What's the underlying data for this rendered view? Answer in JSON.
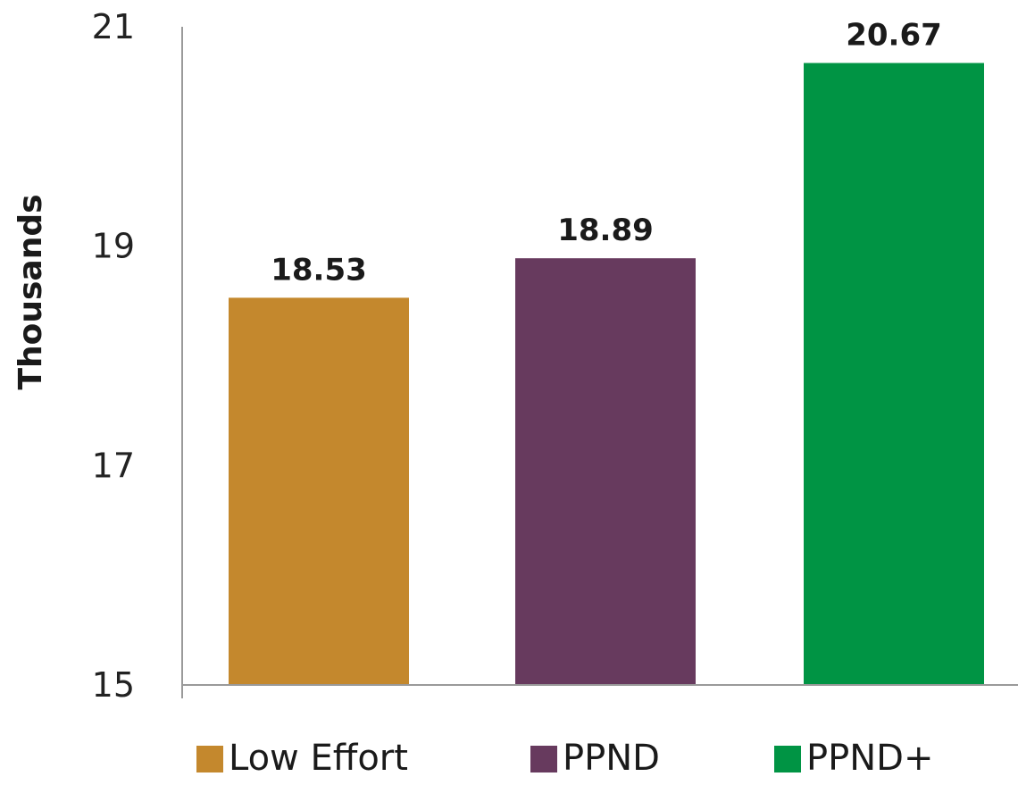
{
  "chart_data": {
    "type": "bar",
    "title": "",
    "xlabel": "",
    "ylabel": "Thousands",
    "ylim": [
      15,
      21
    ],
    "yticks": [
      15,
      17,
      19,
      21
    ],
    "grid": false,
    "legend_position": "bottom",
    "categories": [
      "Low Effort",
      "PPND",
      "PPND+"
    ],
    "values": [
      18.53,
      18.89,
      20.67
    ],
    "value_labels": [
      "18.53",
      "18.89",
      "20.67"
    ],
    "colors": [
      "#C4882D",
      "#673A5E",
      "#009444"
    ]
  }
}
